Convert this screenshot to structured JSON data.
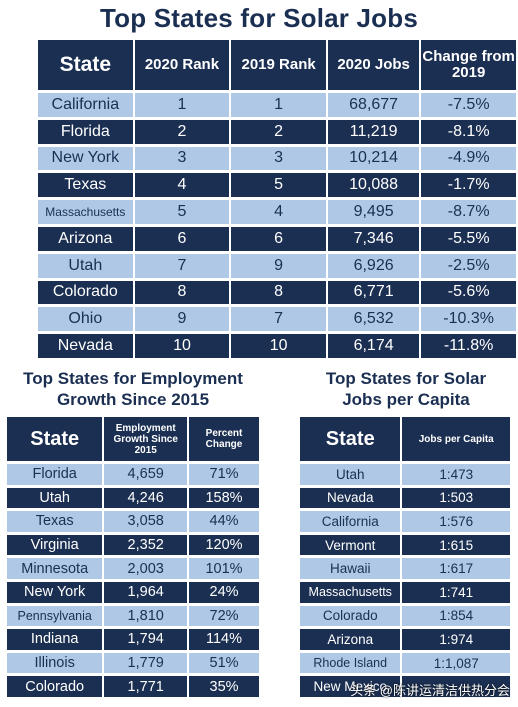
{
  "chart_data": [
    {
      "type": "table",
      "title": "Top States for Solar Jobs",
      "columns": [
        "State",
        "2020 Rank",
        "2019 Rank",
        "2020 Jobs",
        "Change from 2019"
      ],
      "rows": [
        [
          "California",
          "1",
          "1",
          "68,677",
          "-7.5%"
        ],
        [
          "Florida",
          "2",
          "2",
          "11,219",
          "-8.1%"
        ],
        [
          "New York",
          "3",
          "3",
          "10,214",
          "-4.9%"
        ],
        [
          "Texas",
          "4",
          "5",
          "10,088",
          "-1.7%"
        ],
        [
          "Massachusetts",
          "5",
          "4",
          "9,495",
          "-8.7%"
        ],
        [
          "Arizona",
          "6",
          "6",
          "7,346",
          "-5.5%"
        ],
        [
          "Utah",
          "7",
          "9",
          "6,926",
          "-2.5%"
        ],
        [
          "Colorado",
          "8",
          "8",
          "6,771",
          "-5.6%"
        ],
        [
          "Ohio",
          "9",
          "7",
          "6,532",
          "-10.3%"
        ],
        [
          "Nevada",
          "10",
          "10",
          "6,174",
          "-11.8%"
        ]
      ]
    },
    {
      "type": "table",
      "title": "Top States for Employment Growth Since 2015",
      "columns": [
        "State",
        "Employment Growth Since 2015",
        "Percent Change"
      ],
      "rows": [
        [
          "Florida",
          "4,659",
          "71%"
        ],
        [
          "Utah",
          "4,246",
          "158%"
        ],
        [
          "Texas",
          "3,058",
          "44%"
        ],
        [
          "Virginia",
          "2,352",
          "120%"
        ],
        [
          "Minnesota",
          "2,003",
          "101%"
        ],
        [
          "New York",
          "1,964",
          "24%"
        ],
        [
          "Pennsylvania",
          "1,810",
          "72%"
        ],
        [
          "Indiana",
          "1,794",
          "114%"
        ],
        [
          "Illinois",
          "1,779",
          "51%"
        ],
        [
          "Colorado",
          "1,771",
          "35%"
        ]
      ]
    },
    {
      "type": "table",
      "title": "Top States for Solar Jobs per Capita",
      "columns": [
        "State",
        "Jobs per Capita"
      ],
      "rows": [
        [
          "Utah",
          "1:473"
        ],
        [
          "Nevada",
          "1:503"
        ],
        [
          "California",
          "1:576"
        ],
        [
          "Vermont",
          "1:615"
        ],
        [
          "Hawaii",
          "1:617"
        ],
        [
          "Massachusetts",
          "1:741"
        ],
        [
          "Colorado",
          "1:854"
        ],
        [
          "Arizona",
          "1:974"
        ],
        [
          "Rhode Island",
          "1:1,087"
        ],
        [
          "New Mexico",
          ""
        ]
      ]
    }
  ],
  "colors": {
    "header_dark": "#1b2f52",
    "row_light": "#aec8e6",
    "title": "#1b2f52"
  },
  "watermark": "头条 @陈讲运清洁供热分会"
}
